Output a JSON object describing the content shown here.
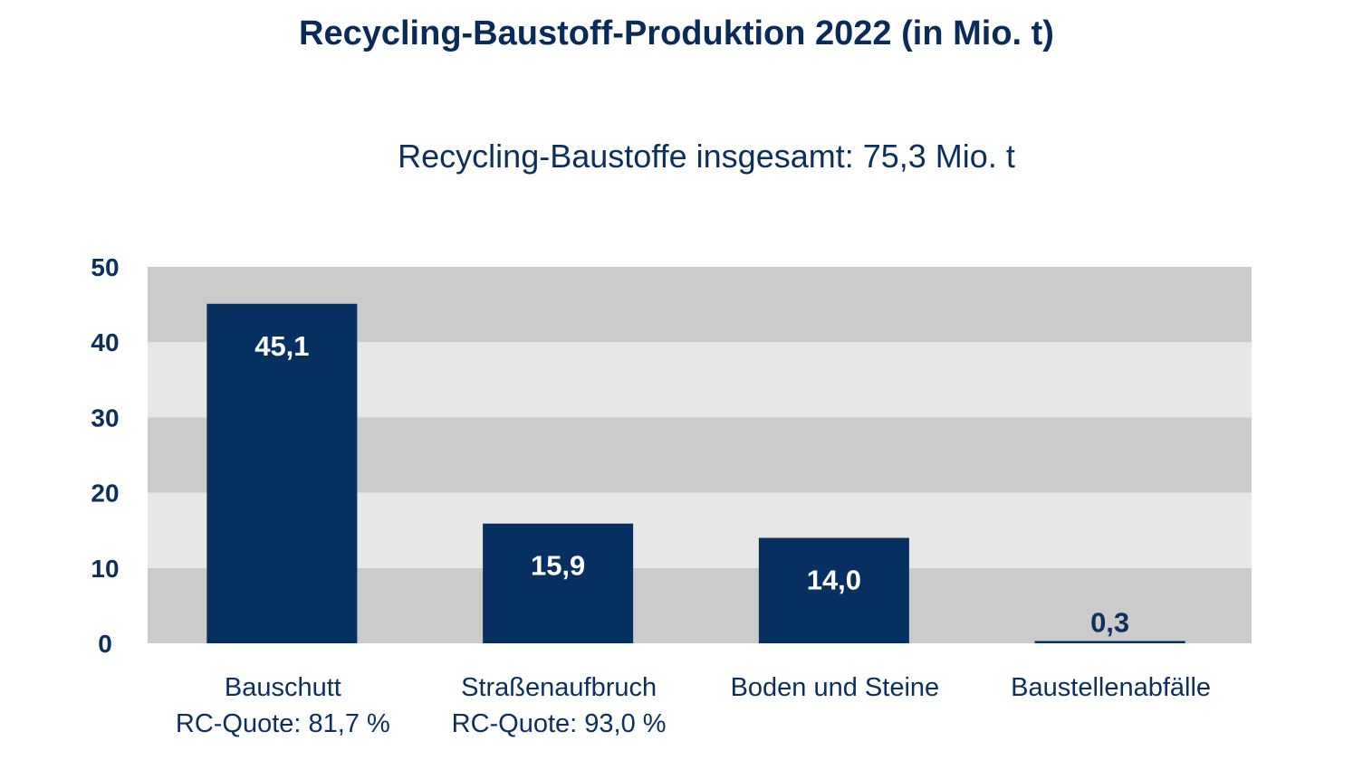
{
  "chart_data": {
    "type": "bar",
    "title": "Recycling-Baustoff-Produktion 2022 (in Mio. t)",
    "subtitle": "Recycling-Baustoffe insgesamt: 75,3 Mio. t",
    "categories": [
      "Bauschutt",
      "Straßenaufbruch",
      "Boden und Steine",
      "Baustellenabfälle"
    ],
    "category_notes": [
      "RC-Quote: 81,7 %",
      "RC-Quote: 93,0 %",
      "",
      ""
    ],
    "values": [
      45.1,
      15.9,
      14.0,
      0.3
    ],
    "value_labels": [
      "45,1",
      "15,9",
      "14,0",
      "0,3"
    ],
    "ylim": [
      0,
      50
    ],
    "yticks": [
      0,
      10,
      20,
      30,
      40,
      50
    ],
    "grid": "alternating horizontal bands",
    "colors": {
      "bar": "#06305f",
      "band_dark": "#cbcbcb",
      "band_light": "#e7e7e7",
      "text": "#0d2f5e"
    }
  }
}
